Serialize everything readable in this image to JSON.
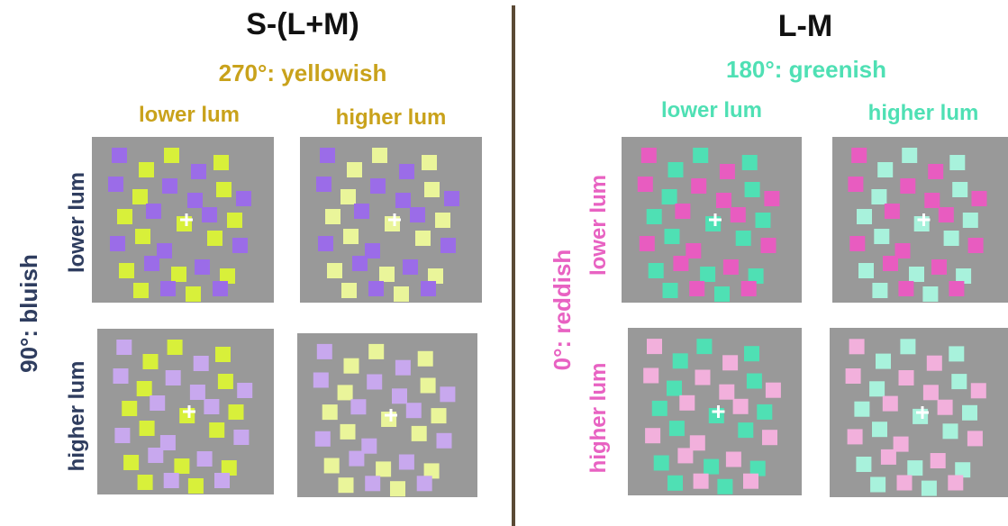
{
  "colors": {
    "background": "#ffffff",
    "panel": "#999999",
    "divider": "#5b4a35",
    "yellow_label": "#c9a21b",
    "green_label": "#4fe0b4",
    "blue_label": "#2f3d5f",
    "pink_label": "#e862c2",
    "fixation": "#ffffff"
  },
  "left": {
    "title": "S-(L+M)",
    "subtitle": "270°: yellowish",
    "col_lower": "lower lum",
    "col_higher": "higher lum",
    "row_lower": "lower lum",
    "row_higher": "higher lum",
    "axis": "90°: bluish",
    "squares": {
      "lower_lower": [
        "#9b6ce8",
        "#d8f03a"
      ],
      "lower_higher": [
        "#9b6ce8",
        "#eaf59a"
      ],
      "higher_lower": [
        "#c8a8ee",
        "#d8f03a"
      ],
      "higher_higher": [
        "#c8a8ee",
        "#eaf59a"
      ]
    }
  },
  "right": {
    "title": "L-M",
    "subtitle": "180°: greenish",
    "col_lower": "lower lum",
    "col_higher": "higher lum",
    "row_lower": "lower lum",
    "row_higher": "higher lum",
    "axis": "0°: reddish",
    "squares": {
      "lower_lower": [
        "#e85cc0",
        "#4fe0b4"
      ],
      "lower_higher": [
        "#e85cc0",
        "#a8f2dc"
      ],
      "higher_lower": [
        "#f2b0dc",
        "#4fe0b4"
      ],
      "higher_higher": [
        "#f2b0dc",
        "#a8f2dc"
      ]
    }
  }
}
